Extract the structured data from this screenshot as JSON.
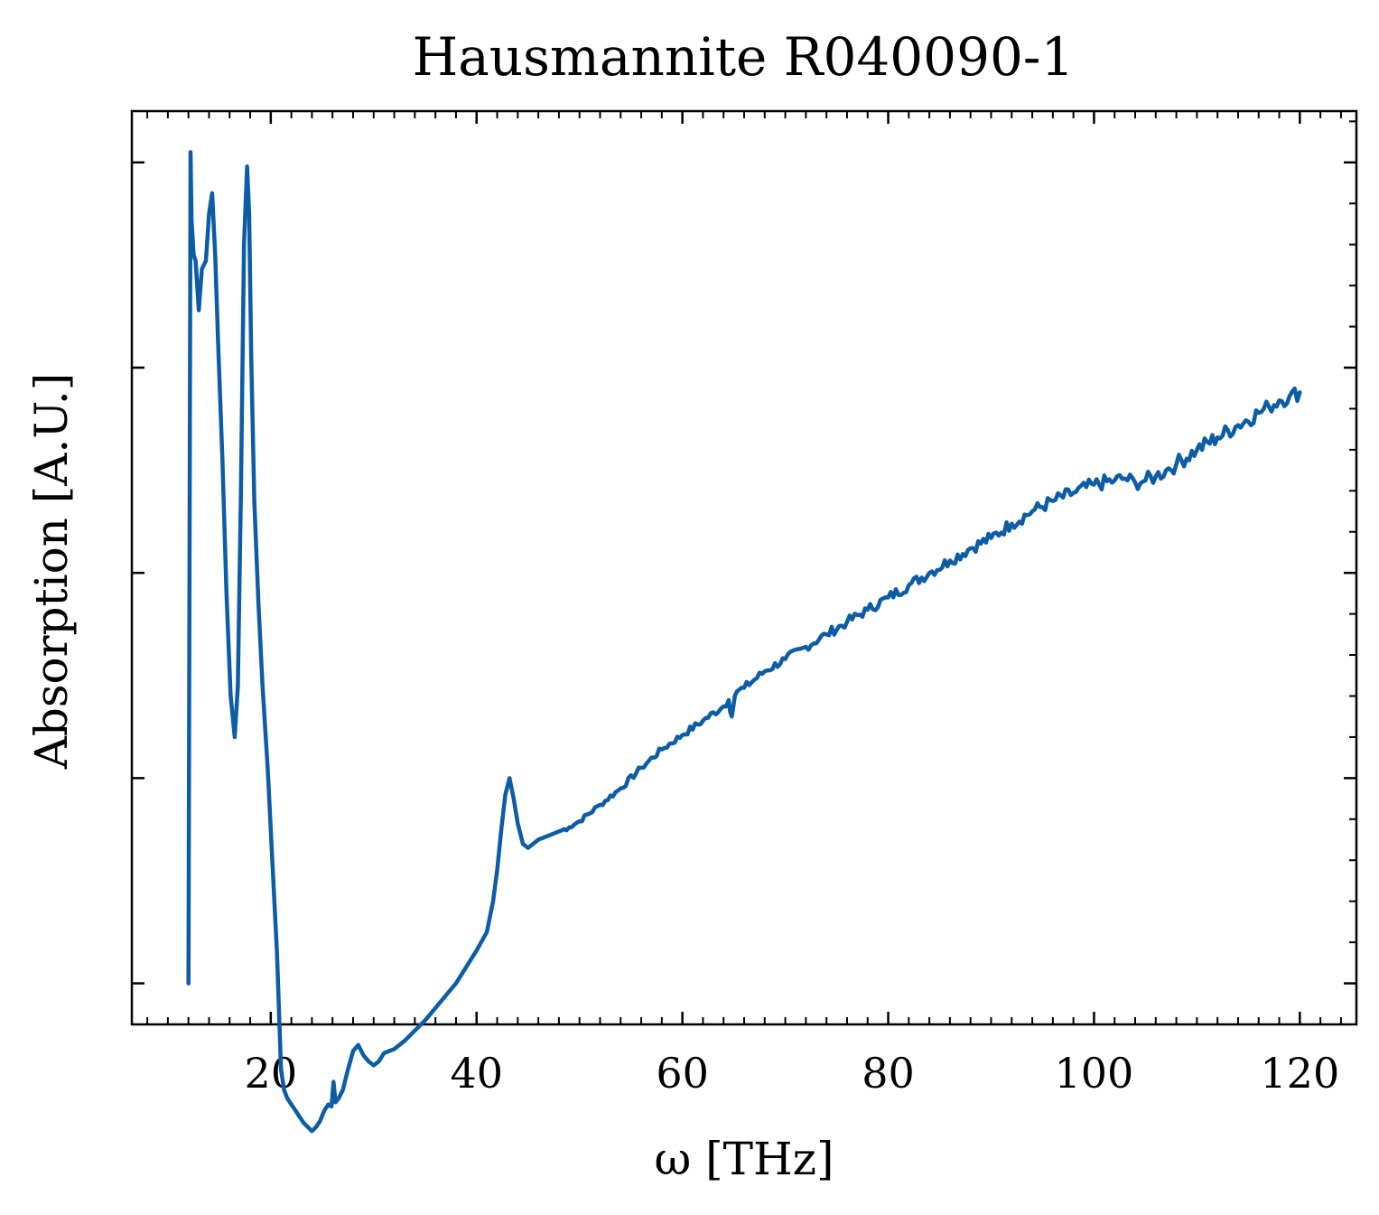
{
  "chart_data": {
    "type": "line",
    "title": "Hausmannite R040090-1",
    "xlabel": "ω [THz]",
    "ylabel": "Absorption [A.U.]",
    "xlim": [
      6.5,
      125.5
    ],
    "ylim": [
      -0.2,
      4.25
    ],
    "x_ticks": [
      20,
      40,
      60,
      80,
      100,
      120
    ],
    "x_tick_labels": [
      "20",
      "40",
      "60",
      "80",
      "100",
      "120"
    ],
    "x_minor_step": 2,
    "y_ticks": [
      0,
      1,
      2,
      3,
      4
    ],
    "y_tick_labels_shown": false,
    "y_minor_step": 0.2,
    "grid": false,
    "legend": "none",
    "series": [
      {
        "color": "#0C5DA5",
        "x": [
          12.0,
          12.2,
          12.3,
          12.5,
          12.7,
          13.0,
          13.3,
          13.7,
          14.0,
          14.3,
          14.6,
          14.9,
          15.3,
          15.7,
          16.1,
          16.5,
          16.8,
          17.1,
          17.4,
          17.7,
          17.9,
          18.1,
          18.4,
          18.8,
          19.2,
          19.7,
          20.2,
          20.6,
          21.0,
          21.3,
          21.6,
          22.0,
          22.4,
          22.8,
          23.2,
          23.6,
          24.0,
          24.4,
          24.8,
          25.2,
          25.6,
          25.9,
          26.1,
          26.3,
          26.6,
          27.0,
          27.5,
          28.0,
          28.5,
          29.0,
          29.5,
          30.0,
          30.5,
          31.0,
          31.5,
          32.0,
          32.5,
          33.0,
          34.0,
          35.0,
          36.0,
          37.0,
          38.0,
          39.0,
          40.0,
          41.0,
          41.6,
          42.0,
          42.4,
          42.8,
          43.2,
          43.6,
          44.0,
          44.5,
          45.0,
          45.5,
          46.0,
          47.0,
          48.0,
          49.0,
          50.0,
          52.0,
          54.0,
          56.0,
          58.0,
          60.0,
          62.0,
          64.0,
          64.5,
          64.8,
          65.1,
          65.5,
          66.0,
          68.0,
          70.0,
          72.0,
          74.0,
          76.0,
          78.0,
          80.0,
          82.0,
          84.0,
          86.0,
          88.0,
          90.0,
          92.0,
          94.0,
          96.0,
          98.0,
          100.0,
          102.0,
          103.0,
          104.0,
          105.0,
          106.0,
          107.0,
          108.0,
          110.0,
          112.0,
          114.0,
          116.0,
          117.0,
          118.0,
          119.0,
          120.0
        ],
        "y": [
          0.0,
          4.05,
          3.72,
          3.55,
          3.52,
          3.28,
          3.48,
          3.52,
          3.75,
          3.85,
          3.55,
          3.1,
          2.55,
          1.9,
          1.4,
          1.2,
          1.45,
          2.4,
          3.6,
          3.98,
          3.75,
          3.05,
          2.35,
          1.85,
          1.45,
          1.05,
          0.55,
          0.15,
          -0.42,
          -0.52,
          -0.56,
          -0.59,
          -0.62,
          -0.65,
          -0.68,
          -0.7,
          -0.72,
          -0.7,
          -0.67,
          -0.62,
          -0.59,
          -0.6,
          -0.48,
          -0.58,
          -0.56,
          -0.52,
          -0.42,
          -0.33,
          -0.3,
          -0.35,
          -0.38,
          -0.4,
          -0.38,
          -0.34,
          -0.33,
          -0.32,
          -0.3,
          -0.28,
          -0.23,
          -0.18,
          -0.12,
          -0.06,
          0.0,
          0.08,
          0.16,
          0.25,
          0.4,
          0.55,
          0.75,
          0.92,
          1.0,
          0.9,
          0.78,
          0.68,
          0.66,
          0.68,
          0.7,
          0.72,
          0.74,
          0.76,
          0.79,
          0.87,
          0.95,
          1.05,
          1.14,
          1.21,
          1.28,
          1.35,
          1.38,
          1.3,
          1.4,
          1.43,
          1.44,
          1.52,
          1.58,
          1.64,
          1.7,
          1.76,
          1.82,
          1.88,
          1.94,
          2.0,
          2.06,
          2.12,
          2.17,
          2.24,
          2.3,
          2.35,
          2.39,
          2.43,
          2.45,
          2.46,
          2.44,
          2.45,
          2.47,
          2.5,
          2.53,
          2.6,
          2.66,
          2.72,
          2.78,
          2.81,
          2.84,
          2.86,
          2.88
        ]
      }
    ]
  }
}
